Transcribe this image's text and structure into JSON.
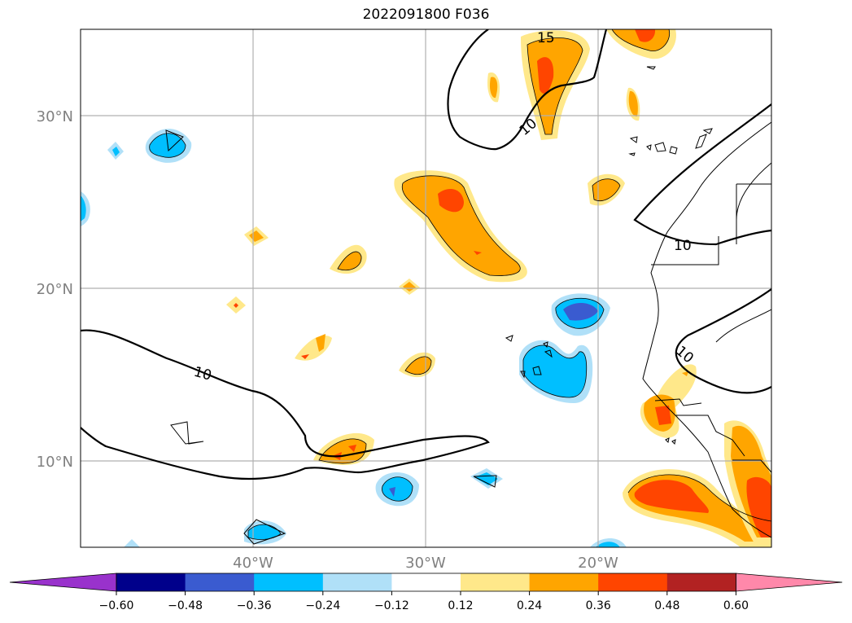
{
  "title": "2022091800 F036",
  "map": {
    "lat_ticks": [
      {
        "label": "30°N",
        "lat": 30
      },
      {
        "label": "20°N",
        "lat": 20
      },
      {
        "label": "10°N",
        "lat": 10
      }
    ],
    "lon_ticks": [
      {
        "label": "40°W",
        "lon": -40
      },
      {
        "label": "30°W",
        "lon": -30
      },
      {
        "label": "20°W",
        "lon": -20
      }
    ],
    "extent": {
      "lon_min": -50,
      "lon_max": -10,
      "lat_min": 5,
      "lat_max": 35
    },
    "contour_labels": [
      "15",
      "10",
      "10",
      "10",
      "10"
    ]
  },
  "colorbar": {
    "ticks": [
      "−0.60",
      "−0.48",
      "−0.36",
      "−0.24",
      "−0.12",
      "0.12",
      "0.24",
      "0.36",
      "0.48",
      "0.60"
    ],
    "colors": [
      "#9932cc",
      "#00008b",
      "#3a5bd0",
      "#00bfff",
      "#b0e0f8",
      "#ffffff",
      "#ffe88a",
      "#ffa500",
      "#ff4500",
      "#b22222",
      "#ff88aa"
    ]
  }
}
